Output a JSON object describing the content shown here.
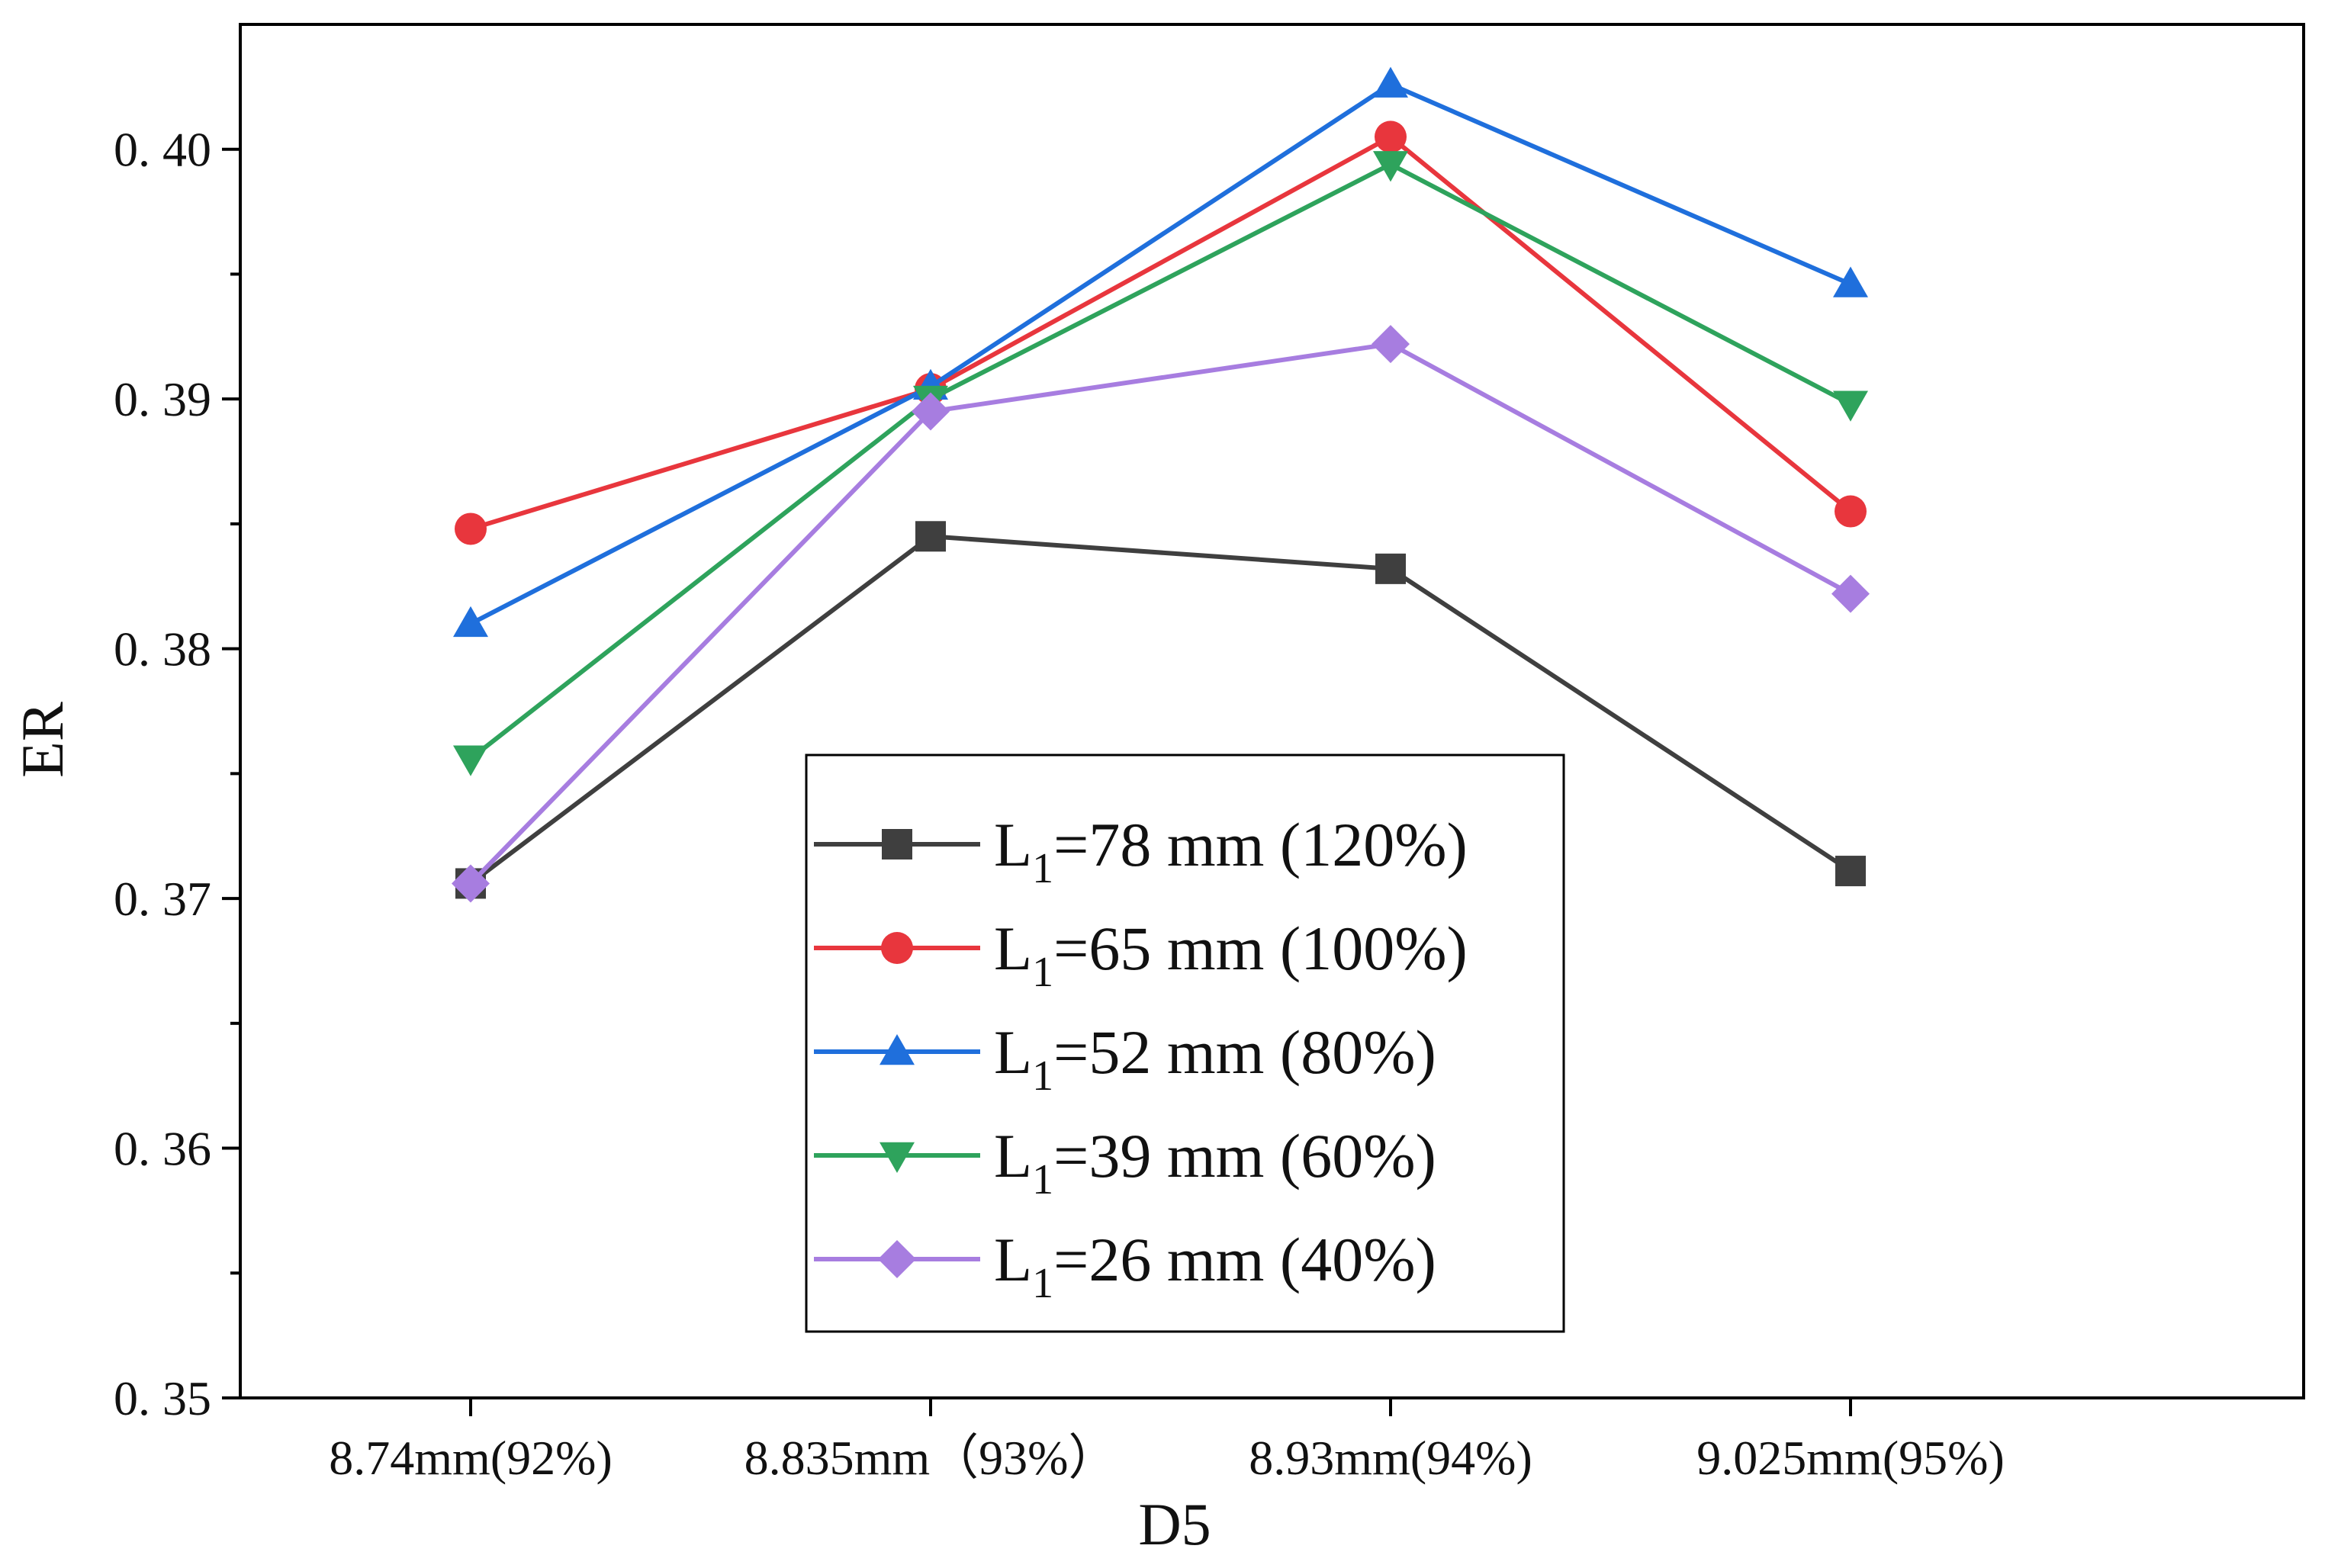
{
  "chart_data": {
    "type": "line",
    "title": "",
    "xlabel": "D5",
    "ylabel": "ER",
    "categories": [
      "8.74mm(92%)",
      "8.835mm（93%）",
      "8.93mm(94%)",
      "9.025mm(95%)"
    ],
    "ylim": [
      0.35,
      0.405
    ],
    "y_major_ticks": [
      0.35,
      0.36,
      0.37,
      0.38,
      0.39,
      0.4
    ],
    "y_tick_labels": [
      "0. 35",
      "0. 36",
      "0. 37",
      "0. 38",
      "0. 39",
      "0. 40"
    ],
    "y_minor_ticks": [
      0.355,
      0.365,
      0.375,
      0.385,
      0.395
    ],
    "grid": false,
    "legend_position": "bottom-center",
    "series": [
      {
        "name_main": "L",
        "name_sub": "1",
        "name_rest": "=78 mm (120%)",
        "color": "#3f3f3f",
        "marker": "square",
        "values": [
          0.3706,
          0.3845,
          0.3832,
          0.3711
        ]
      },
      {
        "name_main": "L",
        "name_sub": "1",
        "name_rest": "=65 mm (100%)",
        "color": "#e8363d",
        "marker": "circle",
        "values": [
          0.3848,
          0.3904,
          0.4005,
          0.3855
        ]
      },
      {
        "name_main": "L",
        "name_sub": "1",
        "name_rest": "=52 mm (80%)",
        "color": "#1f6fdc",
        "marker": "triangle-up",
        "values": [
          0.381,
          0.3905,
          0.4026,
          0.3946
        ]
      },
      {
        "name_main": "L",
        "name_sub": "1",
        "name_rest": "=39 mm (60%)",
        "color": "#2ea35c",
        "marker": "triangle-down",
        "values": [
          0.3756,
          0.39,
          0.3994,
          0.3898
        ]
      },
      {
        "name_main": "L",
        "name_sub": "1",
        "name_rest": "=26 mm (40%)",
        "color": "#a77de0",
        "marker": "diamond",
        "values": [
          0.3706,
          0.3895,
          0.3922,
          0.3822
        ]
      }
    ]
  }
}
